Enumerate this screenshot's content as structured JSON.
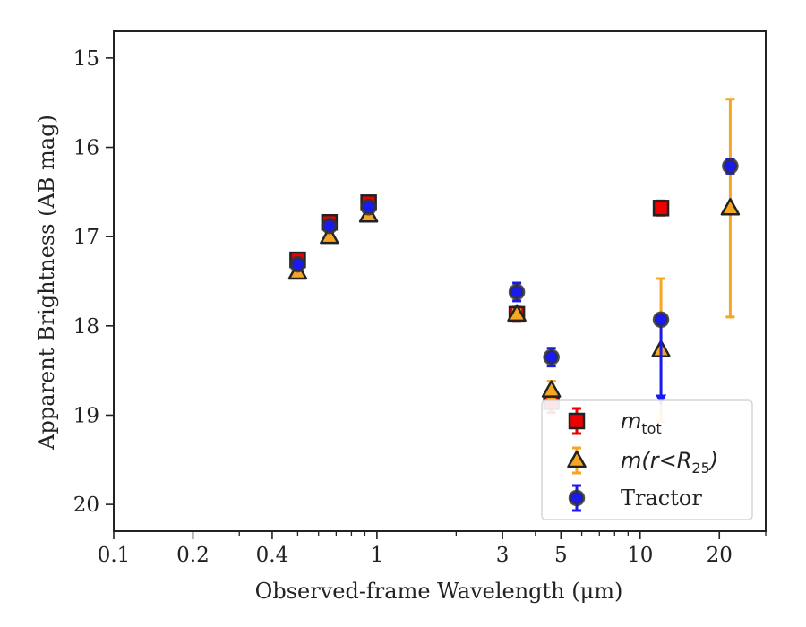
{
  "chart_data": {
    "type": "scatter",
    "title": "",
    "xlabel": "Observed-frame Wavelength (μm)",
    "ylabel": "Apparent Brightness (AB mag)",
    "xscale": "log",
    "yaxis_inverted": true,
    "xlim": [
      0.1,
      30
    ],
    "ylim": [
      20.3,
      14.7
    ],
    "xticks": [
      {
        "value": 0.1,
        "label": "0.1"
      },
      {
        "value": 0.2,
        "label": "0.2"
      },
      {
        "value": 0.4,
        "label": "0.4"
      },
      {
        "value": 1,
        "label": "1"
      },
      {
        "value": 3,
        "label": "3"
      },
      {
        "value": 5,
        "label": "5"
      },
      {
        "value": 10,
        "label": "10"
      },
      {
        "value": 20,
        "label": "20"
      }
    ],
    "yticks": [
      {
        "value": 15,
        "label": "15"
      },
      {
        "value": 16,
        "label": "16"
      },
      {
        "value": 17,
        "label": "17"
      },
      {
        "value": 18,
        "label": "18"
      },
      {
        "value": 19,
        "label": "19"
      },
      {
        "value": 20,
        "label": "20"
      }
    ],
    "grid": false,
    "legend_position": "lower-right",
    "series": [
      {
        "name": "m_tot",
        "legend_label": {
          "main": "m",
          "sub": "tot",
          "rest": ""
        },
        "marker": "square",
        "color": "#ee0000",
        "points": [
          {
            "x": 0.5,
            "y": 17.26,
            "err": 0.07
          },
          {
            "x": 0.66,
            "y": 16.84,
            "err": 0.07
          },
          {
            "x": 0.93,
            "y": 16.62,
            "err": 0.07
          },
          {
            "x": 3.4,
            "y": 17.87,
            "err": 0.08
          },
          {
            "x": 4.6,
            "y": 18.85,
            "err": 0.12
          },
          {
            "x": 12,
            "y": 16.68,
            "err": 0.08
          }
        ]
      },
      {
        "name": "m(r<R_25)",
        "legend_label": {
          "main": "m(r<R",
          "sub": "25",
          "rest": ")"
        },
        "marker": "triangle",
        "color": "#f5a623",
        "points": [
          {
            "x": 0.5,
            "y": 17.4,
            "err": 0.05
          },
          {
            "x": 0.66,
            "y": 17.0,
            "err": 0.05
          },
          {
            "x": 0.93,
            "y": 16.76,
            "err": 0.05
          },
          {
            "x": 3.4,
            "y": 17.87,
            "err": 0.05
          },
          {
            "x": 4.6,
            "y": 18.72,
            "err": 0.1
          },
          {
            "x": 12,
            "y": 18.27,
            "err": 0.8
          },
          {
            "x": 22,
            "y": 16.68,
            "err": 1.22
          }
        ]
      },
      {
        "name": "Tractor",
        "legend_label": {
          "main": "Tractor",
          "sub": "",
          "rest": ""
        },
        "marker": "circle",
        "color": "#1a1aee",
        "points": [
          {
            "x": 0.5,
            "y": 17.31,
            "err": 0.04
          },
          {
            "x": 0.66,
            "y": 16.88,
            "err": 0.04
          },
          {
            "x": 0.93,
            "y": 16.67,
            "err": 0.04
          },
          {
            "x": 3.4,
            "y": 17.62,
            "err": 0.1
          },
          {
            "x": 4.6,
            "y": 18.35,
            "err": 0.1
          },
          {
            "x": 12,
            "y": 17.93,
            "err": 0.02,
            "upper_limit": true,
            "limit_to": 18.85
          },
          {
            "x": 22,
            "y": 16.21,
            "err": 0.08
          }
        ]
      }
    ]
  }
}
